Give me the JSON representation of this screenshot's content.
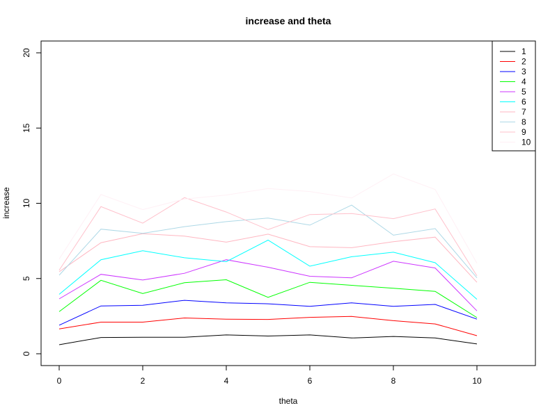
{
  "chart_data": {
    "type": "line",
    "title": "increase and theta",
    "xlabel": "theta",
    "ylabel": "increase",
    "xlim": [
      0,
      11
    ],
    "ylim": [
      0,
      20
    ],
    "x_ticks": [
      "0",
      "2",
      "4",
      "6",
      "8",
      "10"
    ],
    "y_ticks": [
      "0",
      "5",
      "10",
      "15",
      "20"
    ],
    "x": [
      0,
      1,
      2,
      3,
      4,
      5,
      6,
      7,
      8,
      9,
      10
    ],
    "legend_position": "top-right",
    "series": [
      {
        "name": "1",
        "color": "#000000",
        "values": [
          0.6,
          1.08,
          1.1,
          1.1,
          1.25,
          1.18,
          1.25,
          1.05,
          1.15,
          1.05,
          0.65
        ]
      },
      {
        "name": "2",
        "color": "#ff0000",
        "values": [
          1.65,
          2.1,
          2.1,
          2.38,
          2.3,
          2.28,
          2.42,
          2.48,
          2.2,
          1.98,
          1.2
        ]
      },
      {
        "name": "3",
        "color": "#0000ff",
        "values": [
          1.9,
          3.18,
          3.22,
          3.55,
          3.38,
          3.32,
          3.15,
          3.38,
          3.15,
          3.28,
          2.3
        ]
      },
      {
        "name": "4",
        "color": "#00ff00",
        "values": [
          2.8,
          4.88,
          4.0,
          4.72,
          4.92,
          3.75,
          4.75,
          4.55,
          4.35,
          4.15,
          2.4
        ]
      },
      {
        "name": "5",
        "color": "#cc33ff",
        "values": [
          3.65,
          5.28,
          4.9,
          5.35,
          6.25,
          5.75,
          5.15,
          5.05,
          6.15,
          5.7,
          2.85
        ]
      },
      {
        "name": "6",
        "color": "#00ffff",
        "values": [
          3.95,
          6.25,
          6.85,
          6.38,
          6.12,
          7.55,
          5.82,
          6.45,
          6.75,
          6.05,
          3.62
        ]
      },
      {
        "name": "7",
        "color": "#ffb6c1",
        "values": [
          5.45,
          7.38,
          7.98,
          7.82,
          7.42,
          7.95,
          7.12,
          7.05,
          7.45,
          7.75,
          4.75
        ]
      },
      {
        "name": "8",
        "color": "#add8e6",
        "values": [
          5.22,
          8.28,
          8.0,
          8.45,
          8.78,
          9.02,
          8.55,
          9.88,
          7.88,
          8.32,
          5.05
        ]
      },
      {
        "name": "9",
        "color": "#ffc0cb",
        "values": [
          5.55,
          9.78,
          8.68,
          10.38,
          9.42,
          8.25,
          9.25,
          9.32,
          8.98,
          9.62,
          5.18
        ]
      },
      {
        "name": "10",
        "color": "#fff0f5",
        "values": [
          6.3,
          10.58,
          9.58,
          10.28,
          10.55,
          10.98,
          10.78,
          10.35,
          11.95,
          10.92,
          6.02
        ]
      }
    ]
  }
}
